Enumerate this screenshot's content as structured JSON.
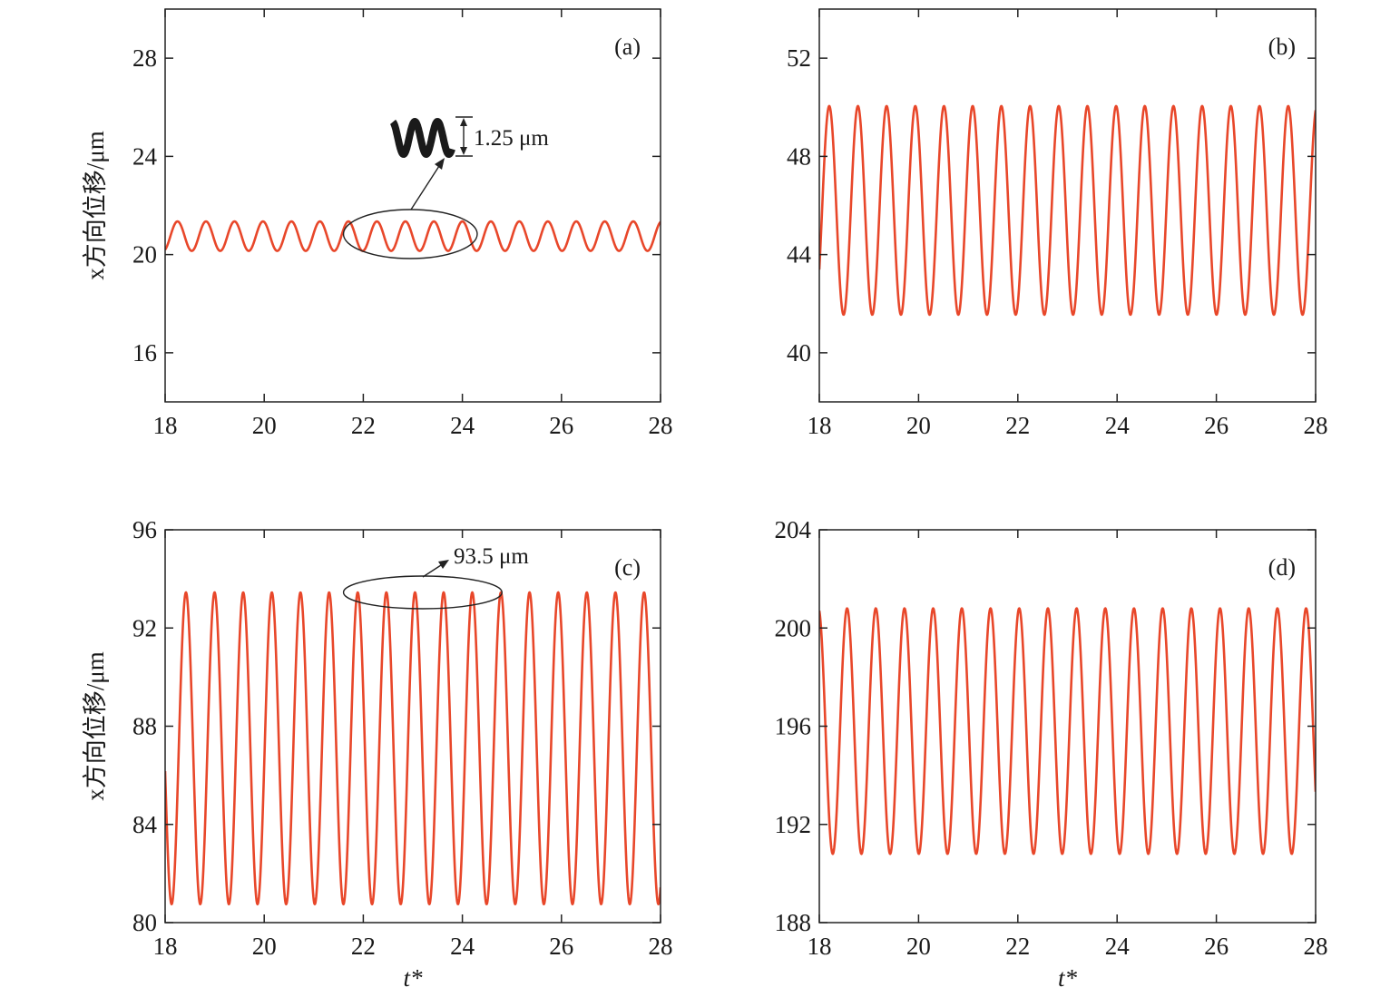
{
  "chart_data": [
    {
      "type": "line",
      "panel": "(a)",
      "ylabel": "x方向位移/μm",
      "xlabel": "",
      "xlim": [
        18,
        28
      ],
      "ylim": [
        14,
        30
      ],
      "xticks": [
        18,
        20,
        22,
        24,
        26,
        28
      ],
      "yticks": [
        16,
        20,
        24,
        28
      ],
      "series": [
        {
          "color": "#e8472a",
          "mean": 20.75,
          "amplitude": 0.6,
          "period": 0.575,
          "phase_t0": 18.25
        }
      ],
      "annotation": {
        "text": "1.25 μm",
        "mark": "wave-inset",
        "circled_span": [
          21.6,
          24.3
        ]
      }
    },
    {
      "type": "line",
      "panel": "(b)",
      "ylabel": "",
      "xlabel": "",
      "xlim": [
        18,
        28
      ],
      "ylim": [
        38,
        54
      ],
      "xticks": [
        18,
        20,
        22,
        24,
        26,
        28
      ],
      "yticks": [
        40,
        44,
        48,
        52
      ],
      "series": [
        {
          "color": "#e8472a",
          "mean": 45.8,
          "amplitude": 4.25,
          "period": 0.578,
          "phase_t0": 18.2
        }
      ]
    },
    {
      "type": "line",
      "panel": "(c)",
      "ylabel": "x方向位移/μm",
      "xlabel": "t*",
      "xlim": [
        18,
        28
      ],
      "ylim": [
        80,
        96
      ],
      "xticks": [
        18,
        20,
        22,
        24,
        26,
        28
      ],
      "yticks": [
        80,
        84,
        88,
        92,
        96
      ],
      "series": [
        {
          "color": "#e8472a",
          "mean": 87.1,
          "amplitude": 6.35,
          "period": 0.578,
          "phase_t0": 18.42
        }
      ],
      "annotation": {
        "text": "93.5 μm",
        "circled_span": [
          21.6,
          24.8
        ]
      }
    },
    {
      "type": "line",
      "panel": "(d)",
      "ylabel": "",
      "xlabel": "t*",
      "xlim": [
        18,
        28
      ],
      "ylim": [
        188,
        204
      ],
      "xticks": [
        18,
        20,
        22,
        24,
        26,
        28
      ],
      "yticks": [
        188,
        192,
        196,
        200,
        204
      ],
      "series": [
        {
          "color": "#e8472a",
          "mean": 195.8,
          "amplitude": 5.0,
          "period": 0.578,
          "phase_t0": 18.56
        }
      ]
    }
  ]
}
